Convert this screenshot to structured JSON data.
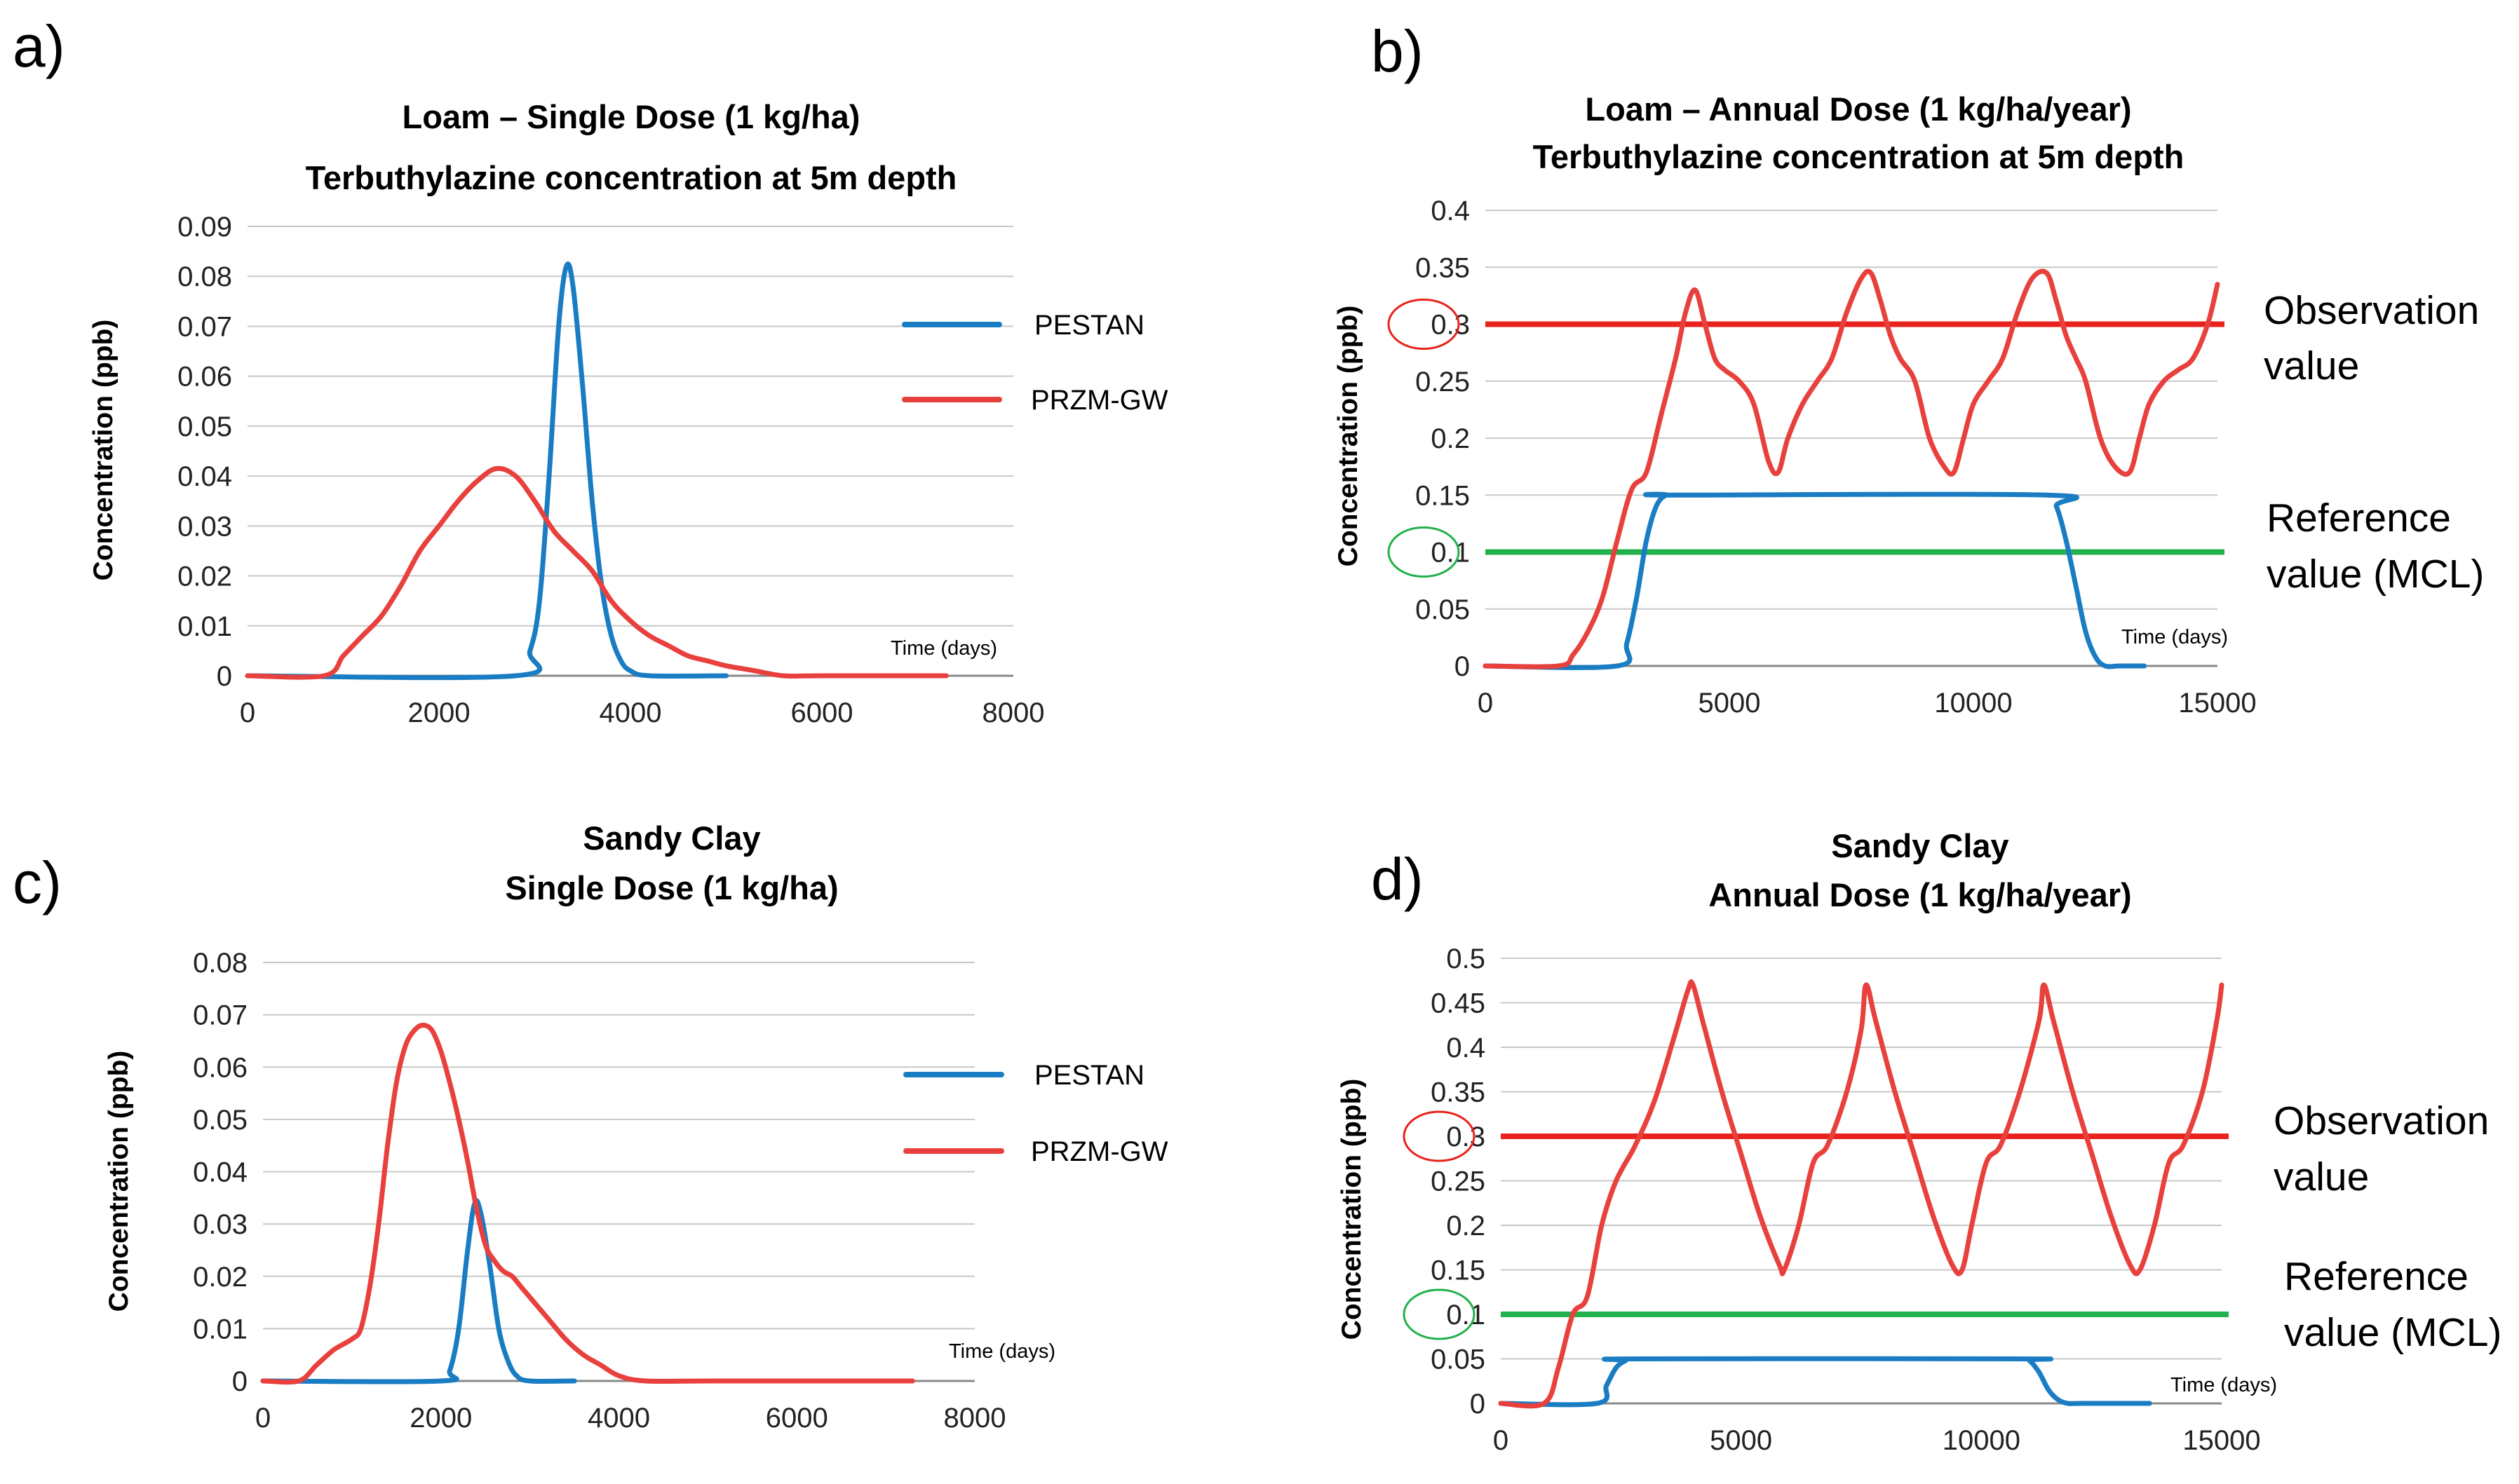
{
  "chart_data": [
    {
      "panel": "a)",
      "type": "line",
      "title": [
        "Loam – Single Dose (1 kg/ha)",
        "Terbuthylazine concentration at 5m depth"
      ],
      "xlabel": "Time (days)",
      "ylabel": "Concentration (ppb)",
      "xlim": [
        0,
        8000
      ],
      "ylim": [
        0,
        0.09
      ],
      "xticks": [
        "0",
        "2000",
        "4000",
        "6000",
        "8000"
      ],
      "yticks": [
        "0",
        "0.01",
        "0.02",
        "0.03",
        "0.04",
        "0.05",
        "0.06",
        "0.07",
        "0.08",
        "0.09"
      ],
      "grid": true,
      "legend": "right",
      "series": [
        {
          "name": "PESTAN",
          "color": "#1a7dc4",
          "x": [
            0,
            2800,
            2950,
            3050,
            3150,
            3250,
            3330,
            3400,
            3500,
            3600,
            3700,
            3800,
            3900,
            4000,
            4200,
            5000
          ],
          "y": [
            0,
            0,
            0.005,
            0.015,
            0.04,
            0.07,
            0.082,
            0.078,
            0.058,
            0.035,
            0.018,
            0.008,
            0.003,
            0.001,
            0,
            0
          ]
        },
        {
          "name": "PRZM-GW",
          "color": "#e8403c",
          "x": [
            0,
            800,
            1000,
            1200,
            1400,
            1600,
            1800,
            2000,
            2200,
            2400,
            2600,
            2800,
            3000,
            3200,
            3400,
            3600,
            3800,
            4000,
            4200,
            4400,
            4600,
            4800,
            5000,
            5300,
            5600,
            6000,
            7300
          ],
          "y": [
            0,
            0,
            0.004,
            0.008,
            0.012,
            0.018,
            0.025,
            0.03,
            0.035,
            0.039,
            0.0415,
            0.04,
            0.035,
            0.029,
            0.025,
            0.021,
            0.015,
            0.011,
            0.008,
            0.006,
            0.004,
            0.003,
            0.002,
            0.001,
            0,
            0,
            0
          ]
        }
      ]
    },
    {
      "panel": "b)",
      "type": "line",
      "title": [
        "Loam – Annual Dose (1 kg/ha/year)",
        "Terbuthylazine concentration at 5m depth"
      ],
      "xlabel": "Time (days)",
      "ylabel": "Concentration (ppb)",
      "xlim": [
        0,
        15000
      ],
      "ylim": [
        0,
        0.4
      ],
      "xticks": [
        "0",
        "5000",
        "10000",
        "15000"
      ],
      "yticks": [
        "0",
        "0.05",
        "0.1",
        "0.15",
        "0.2",
        "0.25",
        "0.3",
        "0.35",
        "0.4"
      ],
      "grid": true,
      "reference_lines": [
        {
          "y": 0.3,
          "color": "#e8221c",
          "circle_label": "0.3",
          "label_line1": "Observation",
          "label_line2": "value"
        },
        {
          "y": 0.1,
          "color": "#22b14c",
          "circle_label": "0.1",
          "label_line1": "Reference",
          "label_line2": "value (MCL)"
        }
      ],
      "series": [
        {
          "name": "PESTAN",
          "color": "#1a7dc4",
          "x": [
            0,
            2700,
            2900,
            3100,
            3300,
            3500,
            3700,
            3900,
            11500,
            11700,
            11900,
            12100,
            12300,
            12500,
            12700,
            13000,
            13500
          ],
          "y": [
            0,
            0,
            0.02,
            0.06,
            0.11,
            0.14,
            0.15,
            0.15,
            0.15,
            0.14,
            0.11,
            0.07,
            0.03,
            0.008,
            0,
            0,
            0
          ]
        },
        {
          "name": "PRZM-GW",
          "color": "#e8403c",
          "x": [
            0,
            1500,
            1800,
            2100,
            2400,
            2700,
            3000,
            3300,
            3600,
            3900,
            4100,
            4300,
            4500,
            4700,
            4900,
            5200,
            5500,
            5800,
            6000,
            6200,
            6500,
            6800,
            7100,
            7400,
            7700,
            7900,
            8100,
            8300,
            8500,
            8800,
            9100,
            9400,
            9600,
            9800,
            10000,
            10300,
            10600,
            10900,
            11200,
            11500,
            11700,
            11900,
            12100,
            12300,
            12600,
            12900,
            13200,
            13400,
            13600,
            13900,
            14200,
            14500,
            14800,
            15000
          ],
          "y": [
            0,
            0,
            0.01,
            0.03,
            0.06,
            0.11,
            0.155,
            0.17,
            0.22,
            0.27,
            0.31,
            0.33,
            0.3,
            0.27,
            0.26,
            0.25,
            0.23,
            0.18,
            0.17,
            0.2,
            0.23,
            0.25,
            0.27,
            0.31,
            0.34,
            0.345,
            0.32,
            0.29,
            0.27,
            0.25,
            0.2,
            0.175,
            0.17,
            0.2,
            0.23,
            0.25,
            0.27,
            0.31,
            0.34,
            0.345,
            0.32,
            0.29,
            0.27,
            0.25,
            0.2,
            0.175,
            0.17,
            0.2,
            0.23,
            0.25,
            0.26,
            0.27,
            0.3,
            0.335
          ]
        }
      ]
    },
    {
      "panel": "c)",
      "type": "line",
      "title": [
        "Sandy Clay",
        "Single Dose (1 kg/ha)"
      ],
      "xlabel": "Time (days)",
      "ylabel": "Concentration (ppb)",
      "xlim": [
        0,
        8000
      ],
      "ylim": [
        0,
        0.08
      ],
      "xticks": [
        "0",
        "2000",
        "4000",
        "6000",
        "8000"
      ],
      "yticks": [
        "0",
        "0.01",
        "0.02",
        "0.03",
        "0.04",
        "0.05",
        "0.06",
        "0.07",
        "0.08"
      ],
      "grid": true,
      "legend": "right",
      "series": [
        {
          "name": "PESTAN",
          "color": "#1a7dc4",
          "x": [
            0,
            2000,
            2100,
            2200,
            2300,
            2380,
            2450,
            2550,
            2650,
            2750,
            2850,
            3000,
            3500
          ],
          "y": [
            0,
            0,
            0.002,
            0.01,
            0.025,
            0.034,
            0.032,
            0.022,
            0.01,
            0.004,
            0.001,
            0,
            0
          ]
        },
        {
          "name": "PRZM-GW",
          "color": "#e8403c",
          "x": [
            0,
            400,
            600,
            800,
            1000,
            1100,
            1200,
            1300,
            1400,
            1500,
            1600,
            1700,
            1800,
            1900,
            2000,
            2100,
            2200,
            2300,
            2400,
            2500,
            2600,
            2700,
            2800,
            2900,
            3000,
            3200,
            3400,
            3600,
            3800,
            4000,
            4300,
            5000,
            6000,
            7300
          ],
          "y": [
            0,
            0,
            0.003,
            0.006,
            0.008,
            0.01,
            0.018,
            0.03,
            0.045,
            0.057,
            0.064,
            0.067,
            0.068,
            0.067,
            0.063,
            0.057,
            0.05,
            0.042,
            0.033,
            0.026,
            0.023,
            0.021,
            0.02,
            0.018,
            0.016,
            0.012,
            0.008,
            0.005,
            0.003,
            0.001,
            0,
            0,
            0,
            0
          ]
        }
      ]
    },
    {
      "panel": "d)",
      "type": "line",
      "title": [
        "Sandy Clay",
        "Annual Dose (1 kg/ha/year)"
      ],
      "xlabel": "Time (days)",
      "ylabel": "Concentration (ppb)",
      "xlim": [
        0,
        15000
      ],
      "ylim": [
        0,
        0.5
      ],
      "xticks": [
        "0",
        "5000",
        "10000",
        "15000"
      ],
      "yticks": [
        "0",
        "0.05",
        "0.1",
        "0.15",
        "0.2",
        "0.25",
        "0.3",
        "0.35",
        "0.4",
        "0.45",
        "0.5"
      ],
      "grid": true,
      "reference_lines": [
        {
          "y": 0.3,
          "color": "#e8221c",
          "circle_label": "0.3",
          "label_line1": "Observation",
          "label_line2": "value"
        },
        {
          "y": 0.1,
          "color": "#22b14c",
          "circle_label": "0.1",
          "label_line1": "Reference",
          "label_line2": "value (MCL)"
        }
      ],
      "series": [
        {
          "name": "PESTAN",
          "color": "#1a7dc4",
          "x": [
            0,
            2000,
            2200,
            2400,
            2600,
            2800,
            10800,
            11000,
            11200,
            11400,
            11600,
            11800,
            12100,
            13500
          ],
          "y": [
            0,
            0,
            0.02,
            0.04,
            0.048,
            0.05,
            0.05,
            0.048,
            0.035,
            0.015,
            0.004,
            0,
            0,
            0
          ]
        },
        {
          "name": "PRZM-GW",
          "color": "#e8403c",
          "x": [
            0,
            900,
            1200,
            1500,
            1800,
            2100,
            2400,
            2800,
            3200,
            3600,
            3900,
            4000,
            4200,
            4600,
            5000,
            5400,
            5800,
            5900,
            6200,
            6500,
            6800,
            7200,
            7500,
            7600,
            7800,
            8200,
            8600,
            9000,
            9400,
            9600,
            9800,
            10100,
            10400,
            10800,
            11200,
            11300,
            11500,
            11900,
            12300,
            12700,
            13100,
            13300,
            13600,
            13900,
            14200,
            14600,
            14900,
            15000
          ],
          "y": [
            0,
            0,
            0.04,
            0.1,
            0.12,
            0.2,
            0.25,
            0.29,
            0.34,
            0.41,
            0.465,
            0.47,
            0.43,
            0.35,
            0.28,
            0.21,
            0.155,
            0.15,
            0.2,
            0.27,
            0.29,
            0.35,
            0.42,
            0.47,
            0.43,
            0.35,
            0.28,
            0.21,
            0.155,
            0.15,
            0.2,
            0.27,
            0.29,
            0.35,
            0.43,
            0.47,
            0.43,
            0.35,
            0.28,
            0.21,
            0.155,
            0.15,
            0.2,
            0.27,
            0.29,
            0.35,
            0.43,
            0.47
          ]
        }
      ]
    }
  ]
}
